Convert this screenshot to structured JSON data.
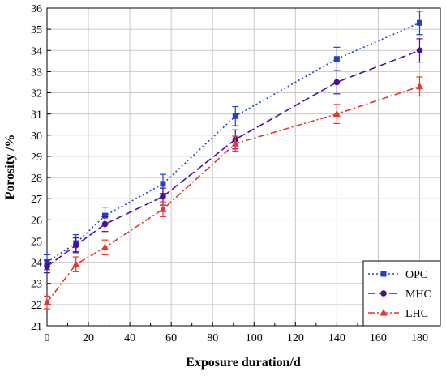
{
  "chart_data": {
    "type": "line",
    "title": "",
    "xlabel": "Exposure duration/d",
    "ylabel": "Porosity /%",
    "xlim": [
      0,
      190
    ],
    "ylim": [
      21,
      36
    ],
    "xticks": [
      0,
      20,
      40,
      60,
      80,
      100,
      120,
      140,
      160,
      180
    ],
    "yticks": [
      21,
      22,
      23,
      24,
      25,
      26,
      27,
      28,
      29,
      30,
      31,
      32,
      33,
      34,
      35,
      36
    ],
    "grid": true,
    "legend_position": "bottom-right",
    "series": [
      {
        "name": "OPC",
        "color": "#1f3fd6",
        "marker": "square",
        "line_style": "dotted",
        "x": [
          0,
          14,
          28,
          56,
          91,
          140,
          180
        ],
        "y": [
          24.0,
          24.9,
          26.2,
          27.7,
          30.9,
          33.6,
          35.3
        ],
        "error": [
          0.35,
          0.4,
          0.4,
          0.45,
          0.45,
          0.55,
          0.55
        ]
      },
      {
        "name": "MHC",
        "color": "#4b0e9a",
        "marker": "circle",
        "line_style": "dashed",
        "x": [
          0,
          14,
          28,
          56,
          91,
          140,
          180
        ],
        "y": [
          23.8,
          24.8,
          25.8,
          27.1,
          29.8,
          32.5,
          34.0
        ],
        "error": [
          0.3,
          0.35,
          0.35,
          0.4,
          0.45,
          0.55,
          0.55
        ]
      },
      {
        "name": "LHC",
        "color": "#e8362d",
        "marker": "triangle",
        "line_style": "dash-dot",
        "x": [
          0,
          14,
          28,
          56,
          91,
          140,
          180
        ],
        "y": [
          22.1,
          23.9,
          24.7,
          26.5,
          29.6,
          31.0,
          32.3
        ],
        "error": [
          0.3,
          0.35,
          0.35,
          0.35,
          0.35,
          0.45,
          0.45
        ]
      }
    ]
  }
}
